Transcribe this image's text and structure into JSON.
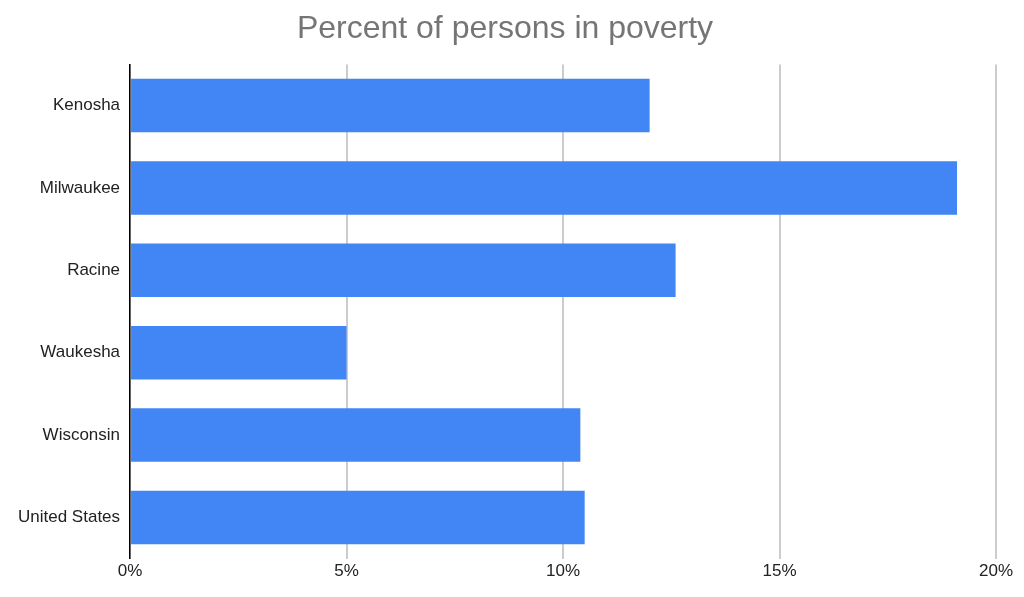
{
  "chart_data": {
    "type": "bar",
    "orientation": "horizontal",
    "title": "Percent of persons in poverty",
    "categories": [
      "Kenosha",
      "Milwaukee",
      "Racine",
      "Waukesha",
      "Wisconsin",
      "United States"
    ],
    "values": [
      12.0,
      19.1,
      12.6,
      5.0,
      10.4,
      10.5
    ],
    "color": "#4285f4",
    "xlim": [
      0,
      20
    ],
    "xticks": [
      {
        "value": 0,
        "label": "0%"
      },
      {
        "value": 5,
        "label": "5%"
      },
      {
        "value": 10,
        "label": "10%"
      },
      {
        "value": 15,
        "label": "15%"
      },
      {
        "value": 20,
        "label": "20%"
      }
    ],
    "grid": "x",
    "legend": false
  }
}
